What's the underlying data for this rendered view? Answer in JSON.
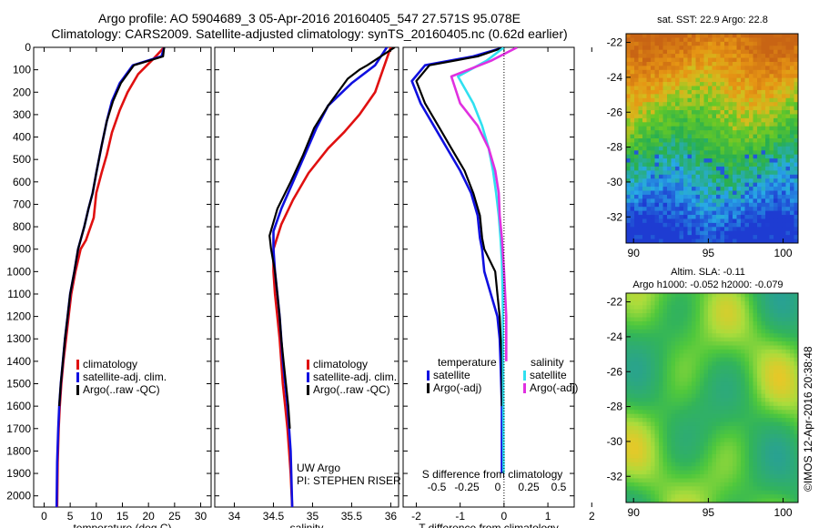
{
  "header": {
    "line1": "Argo profile: AO 5904689_3 05-Apr-2016 20160405_547 27.571S 95.078E",
    "line2": "Climatology: CARS2009. Satellite-adjusted climatology: synTS_20160405.nc (0.62d earlier)"
  },
  "side_label": "©IMOS 12-Apr-2016 20:38:48",
  "colors": {
    "climatology": "#e01010",
    "satellite": "#1010e0",
    "argo": "#000000",
    "sal_satellite": "#30e0f0",
    "sal_argo": "#e030e0"
  },
  "chart_data": [
    {
      "type": "line",
      "id": "temperature",
      "xlabel": "temperature (deg C)",
      "ylabel": "",
      "xlim": [
        -2,
        32
      ],
      "ylim": [
        2050,
        0
      ],
      "xticks": [
        0,
        5,
        10,
        15,
        20,
        25,
        30
      ],
      "yticks": [
        0,
        100,
        200,
        300,
        400,
        500,
        600,
        700,
        800,
        900,
        1000,
        1100,
        1200,
        1300,
        1400,
        1500,
        1600,
        1700,
        1800,
        1900,
        2000
      ],
      "legend": [
        "climatology",
        "satellite-adj. clim.",
        "Argo(..raw -QC)"
      ],
      "legend_position": "lower-middle",
      "series": [
        {
          "name": "climatology",
          "color": "#e01010",
          "x": [
            23,
            21,
            18,
            16,
            14.5,
            13,
            12,
            11,
            10,
            9.5,
            8,
            7,
            6,
            5.2,
            4.7,
            4.2,
            3.7,
            3.3,
            3,
            2.8,
            2.6,
            2.5
          ],
          "y": [
            0,
            50,
            120,
            200,
            280,
            380,
            480,
            560,
            650,
            760,
            860,
            900,
            1000,
            1100,
            1200,
            1300,
            1400,
            1500,
            1600,
            1700,
            1850,
            2050
          ]
        },
        {
          "name": "satellite-adj. clim.",
          "color": "#1010e0",
          "x": [
            23,
            22.5,
            17,
            14.5,
            13,
            12,
            11,
            10,
            9.3,
            8.5,
            7.7,
            6.5,
            5.8,
            5,
            4.5,
            4,
            3.6,
            3.2,
            2.9,
            2.7,
            2.5,
            2.4
          ],
          "y": [
            0,
            40,
            80,
            160,
            240,
            330,
            440,
            560,
            650,
            720,
            800,
            900,
            1000,
            1100,
            1200,
            1300,
            1400,
            1500,
            1600,
            1700,
            1850,
            2050
          ]
        },
        {
          "name": "Argo(..raw -QC)",
          "color": "#000000",
          "x": [
            23,
            22.8,
            17.2,
            14.7,
            13.2,
            12,
            11,
            10,
            9.3,
            8.5,
            7.7,
            6.5,
            5.8,
            5,
            4.5,
            4,
            3.6,
            3.2,
            2.9
          ],
          "y": [
            0,
            40,
            80,
            160,
            240,
            330,
            440,
            560,
            650,
            720,
            800,
            900,
            1000,
            1100,
            1200,
            1300,
            1400,
            1500,
            1600
          ]
        }
      ]
    },
    {
      "type": "line",
      "id": "salinity",
      "xlabel": "salinity",
      "annotation": [
        "UW Argo",
        "PI: STEPHEN RISER"
      ],
      "xlim": [
        33.75,
        36.1
      ],
      "ylim": [
        2050,
        0
      ],
      "xticks": [
        34,
        34.5,
        35,
        35.5,
        36
      ],
      "legend": [
        "climatology",
        "satellite-adj. clim.",
        "Argo(..raw -QC)"
      ],
      "legend_position": "lower-right",
      "series": [
        {
          "name": "climatology",
          "color": "#e01010",
          "x": [
            36,
            35.9,
            35.8,
            35.6,
            35.4,
            35.2,
            34.95,
            34.75,
            34.6,
            34.5,
            34.5,
            34.52,
            34.55,
            34.58,
            34.6,
            34.62,
            34.65,
            34.68,
            34.7,
            34.72,
            34.74
          ],
          "y": [
            0,
            100,
            200,
            300,
            380,
            450,
            560,
            680,
            790,
            900,
            1000,
            1100,
            1200,
            1300,
            1400,
            1500,
            1600,
            1700,
            1800,
            1900,
            2050
          ]
        },
        {
          "name": "satellite-adj. clim.",
          "color": "#1010e0",
          "x": [
            35.95,
            35.8,
            35.5,
            35.2,
            35.05,
            34.9,
            34.75,
            34.6,
            34.5,
            34.5,
            34.52,
            34.55,
            34.58,
            34.6,
            34.62,
            34.65,
            34.68,
            34.7,
            34.72,
            34.74
          ],
          "y": [
            0,
            80,
            160,
            260,
            360,
            480,
            600,
            720,
            820,
            900,
            1000,
            1100,
            1200,
            1300,
            1400,
            1500,
            1600,
            1700,
            1800,
            2050
          ]
        },
        {
          "name": "Argo(..raw -QC)",
          "color": "#000000",
          "x": [
            36.05,
            35.7,
            35.6,
            35.45,
            35.2,
            35.02,
            34.88,
            34.72,
            34.55,
            34.45,
            34.47,
            34.52,
            34.55,
            34.58,
            34.6,
            34.63,
            34.66,
            34.69,
            34.71
          ],
          "y": [
            0,
            80,
            100,
            140,
            260,
            360,
            480,
            600,
            720,
            840,
            900,
            1000,
            1100,
            1200,
            1300,
            1400,
            1500,
            1600,
            1700
          ]
        }
      ]
    },
    {
      "type": "line",
      "id": "difference",
      "xlabel": "T difference from climatology",
      "xlabel_top": "S difference from climatology",
      "xlim": [
        -2.3,
        1.6
      ],
      "ylim": [
        2050,
        0
      ],
      "xticks": [
        -2,
        -1,
        0,
        1,
        2
      ],
      "xticks_top": [
        -0.5,
        -0.25,
        0,
        0.25,
        0.5
      ],
      "legend_groups": [
        {
          "title": "temperature",
          "entries": [
            "satellite",
            "Argo(-adj)"
          ]
        },
        {
          "title": "salinity",
          "entries": [
            "satellite",
            "Argo(-adj)"
          ]
        }
      ],
      "legend_position": "lower-middle",
      "series": [
        {
          "name": "temperature satellite",
          "color": "#1010e0",
          "x": [
            0,
            -0.7,
            -1.8,
            -2.1,
            -1.9,
            -1.6,
            -1.3,
            -1.0,
            -0.75,
            -0.6,
            -0.55,
            -0.5,
            -0.45,
            -0.3,
            -0.15,
            -0.1,
            -0.08,
            -0.05,
            -0.05
          ],
          "y": [
            0,
            40,
            80,
            150,
            250,
            350,
            450,
            550,
            650,
            750,
            850,
            900,
            1000,
            1100,
            1200,
            1300,
            1400,
            1600,
            1900
          ]
        },
        {
          "name": "temperature Argo(-adj)",
          "color": "#000000",
          "x": [
            0,
            -0.6,
            -1.7,
            -2.0,
            -1.8,
            -1.5,
            -1.2,
            -0.9,
            -0.7,
            -0.55,
            -0.5,
            -0.45,
            -0.2,
            -0.15,
            -0.1,
            -0.05,
            -0.05
          ],
          "y": [
            0,
            40,
            80,
            150,
            250,
            350,
            450,
            550,
            650,
            750,
            850,
            900,
            1000,
            1100,
            1200,
            1400,
            1600
          ]
        },
        {
          "name": "salinity satellite",
          "color": "#30e0f0",
          "x": [
            0,
            -0.4,
            -1.05,
            -0.7,
            -0.5,
            -0.35,
            -0.25,
            -0.18,
            -0.12,
            -0.08,
            -0.05,
            -0.03,
            -0.02,
            -0.01
          ],
          "y": [
            0,
            60,
            130,
            250,
            350,
            450,
            550,
            650,
            750,
            850,
            950,
            1100,
            1400,
            1900
          ]
        },
        {
          "name": "salinity Argo(-adj)",
          "color": "#e030e0",
          "x": [
            0.3,
            -0.3,
            -1.2,
            -1.0,
            -0.6,
            -0.35,
            -0.2,
            -0.12,
            -0.1,
            -0.05,
            0,
            0.05,
            0.05
          ],
          "y": [
            0,
            60,
            130,
            250,
            350,
            450,
            550,
            650,
            750,
            850,
            1000,
            1200,
            1400
          ]
        }
      ]
    },
    {
      "type": "heatmap",
      "id": "sst-map",
      "title": "sat. SST: 22.9  Argo: 22.8",
      "xlim": [
        89.5,
        101
      ],
      "ylim": [
        -33.5,
        -21.5
      ],
      "xticks": [
        90,
        95,
        100
      ],
      "yticks": [
        -22,
        -24,
        -26,
        -28,
        -30,
        -32
      ]
    },
    {
      "type": "heatmap",
      "id": "sla-map",
      "title": "Altim. SLA: -0.11",
      "subtitle": "Argo h1000: -0.052  h2000: -0.079",
      "xlim": [
        89.5,
        101
      ],
      "ylim": [
        -33.5,
        -21.5
      ],
      "xticks": [
        90,
        95,
        100
      ],
      "yticks": [
        -22,
        -24,
        -26,
        -28,
        -30,
        -32
      ]
    }
  ]
}
